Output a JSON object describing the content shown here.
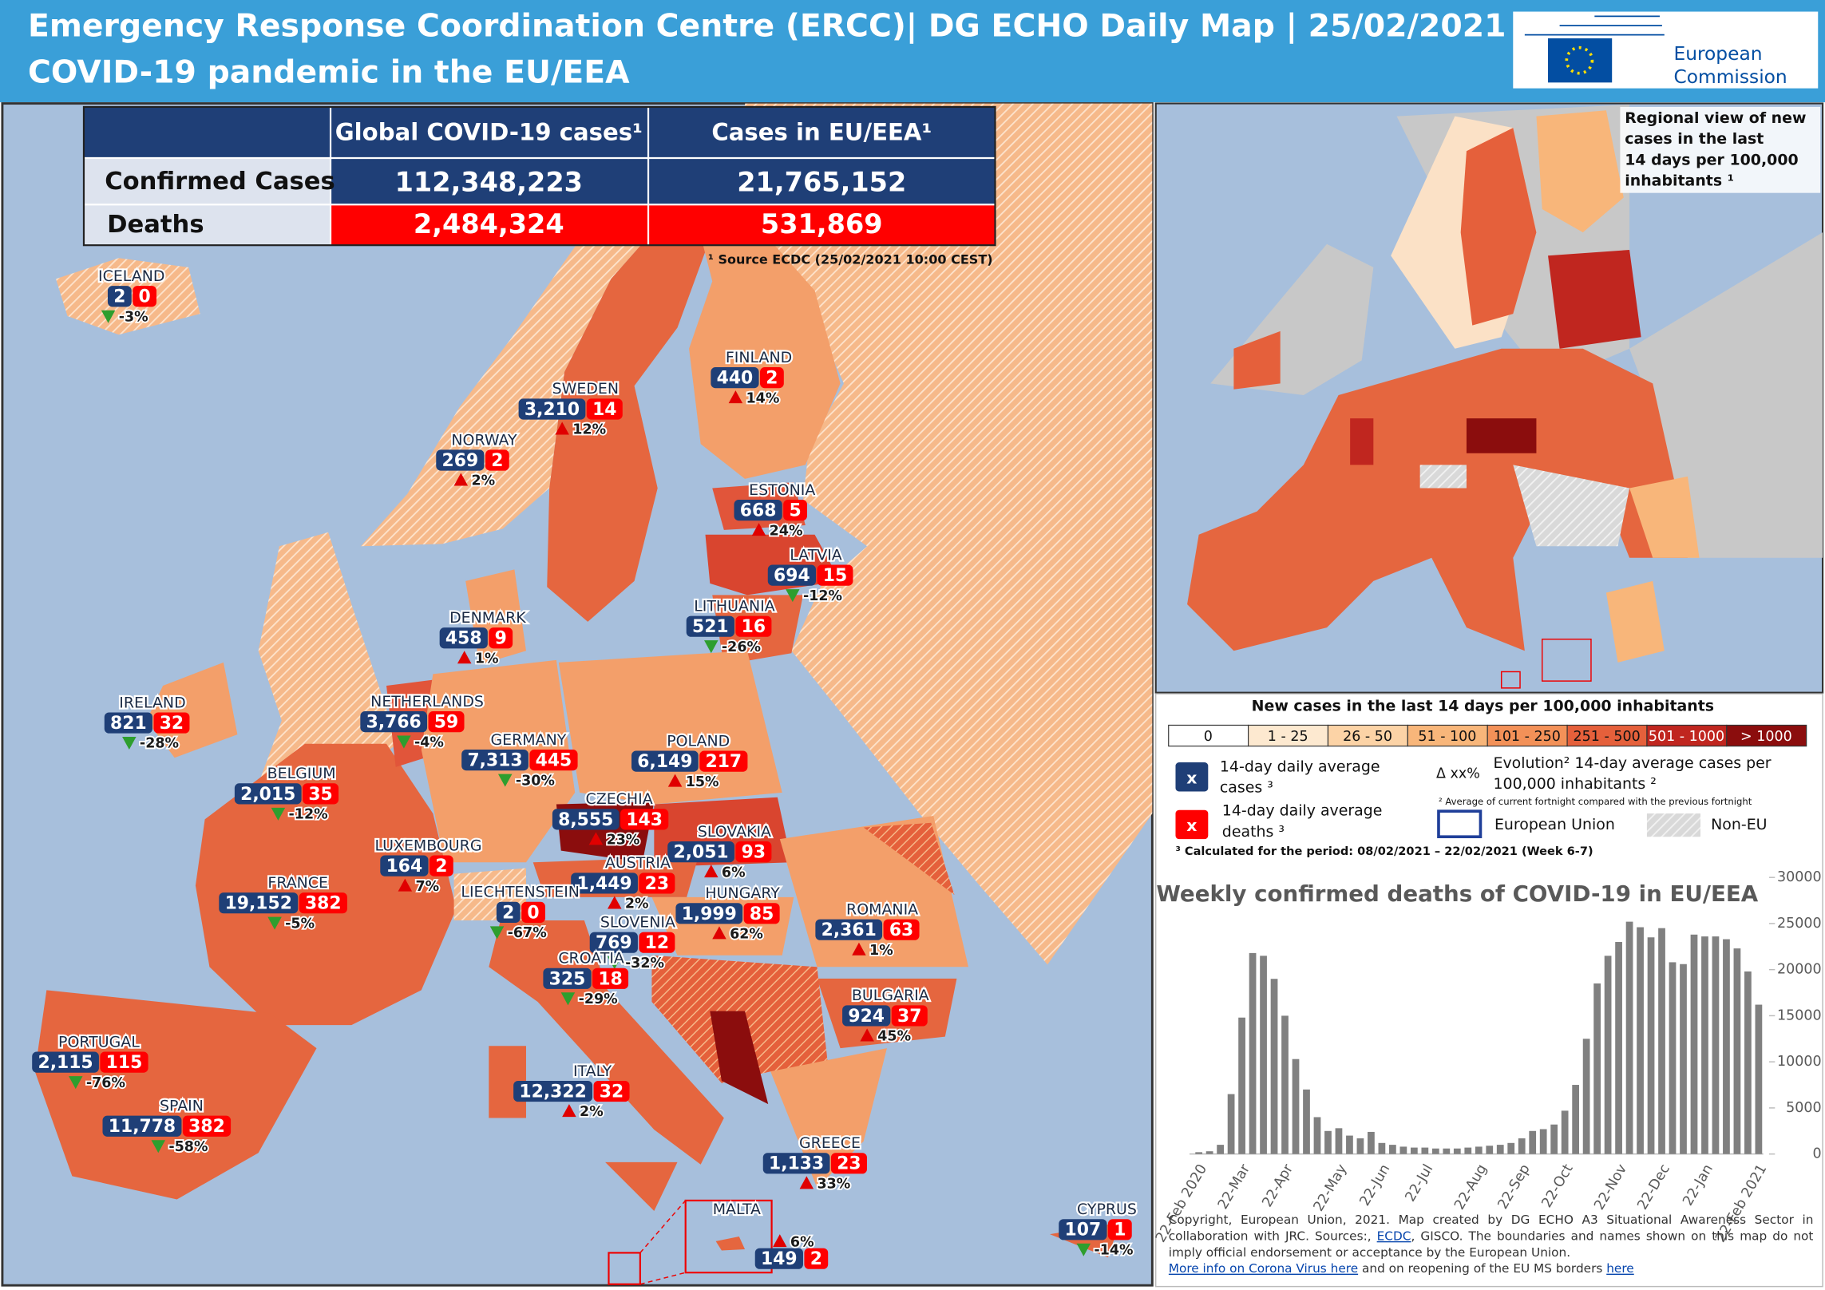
{
  "header": {
    "title": "Emergency Response Coordination Centre (ERCC)| DG ECHO Daily Map | 25/02/2021",
    "subtitle": "COVID-19 pandemic in the EU/EEA",
    "logo": [
      "European",
      "Commission"
    ]
  },
  "summary_table": {
    "columns": [
      "Global COVID-19 cases¹",
      "Cases in EU/EEA¹"
    ],
    "rows": [
      [
        "Confirmed Cases",
        "112,348,223",
        "21,765,152"
      ],
      [
        "Deaths",
        "2,484,324",
        "531,869"
      ]
    ],
    "source": "¹ Source ECDC (25/02/2021 10:00 CEST)"
  },
  "countries": [
    {
      "name": "ICELAND",
      "cases": "2",
      "deaths": "0",
      "trend": "-3%"
    },
    {
      "name": "FINLAND",
      "cases": "440",
      "deaths": "2",
      "trend": "14%"
    },
    {
      "name": "SWEDEN",
      "cases": "3,210",
      "deaths": "14",
      "trend": "12%"
    },
    {
      "name": "NORWAY",
      "cases": "269",
      "deaths": "2",
      "trend": "2%"
    },
    {
      "name": "ESTONIA",
      "cases": "668",
      "deaths": "5",
      "trend": "24%"
    },
    {
      "name": "LATVIA",
      "cases": "694",
      "deaths": "15",
      "trend": "-12%"
    },
    {
      "name": "LITHUANIA",
      "cases": "521",
      "deaths": "16",
      "trend": "-26%"
    },
    {
      "name": "DENMARK",
      "cases": "458",
      "deaths": "9",
      "trend": "1%"
    },
    {
      "name": "IRELAND",
      "cases": "821",
      "deaths": "32",
      "trend": "-28%"
    },
    {
      "name": "NETHERLANDS",
      "cases": "3,766",
      "deaths": "59",
      "trend": "-4%"
    },
    {
      "name": "GERMANY",
      "cases": "7,313",
      "deaths": "445",
      "trend": "-30%"
    },
    {
      "name": "POLAND",
      "cases": "6,149",
      "deaths": "217",
      "trend": "15%"
    },
    {
      "name": "BELGIUM",
      "cases": "2,015",
      "deaths": "35",
      "trend": "-12%"
    },
    {
      "name": "CZECHIA",
      "cases": "8,555",
      "deaths": "143",
      "trend": "23%"
    },
    {
      "name": "SLOVAKIA",
      "cases": "2,051",
      "deaths": "93",
      "trend": "6%"
    },
    {
      "name": "LUXEMBOURG",
      "cases": "164",
      "deaths": "2",
      "trend": "7%"
    },
    {
      "name": "AUSTRIA",
      "cases": "1,449",
      "deaths": "23",
      "trend": "2%"
    },
    {
      "name": "FRANCE",
      "cases": "19,152",
      "deaths": "382",
      "trend": "-5%"
    },
    {
      "name": "LIECHTENSTEIN",
      "cases": "2",
      "deaths": "0",
      "trend": "-67%"
    },
    {
      "name": "HUNGARY",
      "cases": "1,999",
      "deaths": "85",
      "trend": "62%"
    },
    {
      "name": "ROMANIA",
      "cases": "2,361",
      "deaths": "63",
      "trend": "1%"
    },
    {
      "name": "SLOVENIA",
      "cases": "769",
      "deaths": "12",
      "trend": "-32%"
    },
    {
      "name": "CROATIA",
      "cases": "325",
      "deaths": "18",
      "trend": "-29%"
    },
    {
      "name": "BULGARIA",
      "cases": "924",
      "deaths": "37",
      "trend": "45%"
    },
    {
      "name": "PORTUGAL",
      "cases": "2,115",
      "deaths": "115",
      "trend": "-76%"
    },
    {
      "name": "SPAIN",
      "cases": "11,778",
      "deaths": "382",
      "trend": "-58%"
    },
    {
      "name": "ITALY",
      "cases": "12,322",
      "deaths": "32",
      "trend": "2%"
    },
    {
      "name": "GREECE",
      "cases": "1,133",
      "deaths": "23",
      "trend": "33%"
    },
    {
      "name": "MALTA",
      "cases": "149",
      "deaths": "2",
      "trend": "6%"
    },
    {
      "name": "CYPRUS",
      "cases": "107",
      "deaths": "1",
      "trend": "-14%"
    }
  ],
  "regional_map": {
    "caption": [
      "Regional view of new",
      "cases in the last",
      "14 days per 100,000",
      "inhabitants ¹"
    ]
  },
  "legend": {
    "title": "New cases in the last 14 days per 100,000 inhabitants",
    "bins": [
      {
        "label": "0",
        "color": "#ffffff"
      },
      {
        "label": "1 - 25",
        "color": "#fde9d0"
      },
      {
        "label": "26 - 50",
        "color": "#fcd3a6"
      },
      {
        "label": "51 - 100",
        "color": "#f8b67a"
      },
      {
        "label": "101 - 250",
        "color": "#f39158"
      },
      {
        "label": "251 - 500",
        "color": "#e5603b"
      },
      {
        "label": "501 - 1000",
        "color": "#c0261f"
      },
      {
        "label": "> 1000",
        "color": "#8b0d0d"
      }
    ],
    "icon": "x",
    "cases_text": [
      "14-day daily average",
      "cases ³"
    ],
    "deaths_text": [
      "14-day daily average",
      "deaths ³"
    ],
    "evolution_symbol": "Δ xx%",
    "evolution_text": [
      "Evolution² 14-day average cases per",
      "100,000 inhabitants ²"
    ],
    "evolution_note": "² Average of current fortnight compared with the previous fortnight",
    "eu": "European Union",
    "non_eu": "Non-EU",
    "period_note": "³ Calculated for the period: 08/02/2021 – 22/02/2021 (Week 6-7)"
  },
  "chart_data": {
    "type": "bar",
    "title": "Weekly confirmed deaths of COVID-19 in EU/EEA",
    "color": "#808080",
    "categories": [
      "22-Feb 2020",
      null,
      null,
      null,
      "22-Mar",
      null,
      null,
      null,
      "22-Apr",
      null,
      null,
      null,
      null,
      "22-May",
      null,
      null,
      null,
      "22-Jun",
      null,
      null,
      null,
      "22-Jul",
      null,
      null,
      null,
      null,
      "22-Aug",
      null,
      null,
      null,
      "22-Sep",
      null,
      null,
      null,
      "22-Oct",
      null,
      null,
      null,
      null,
      "22-Nov",
      null,
      null,
      null,
      "22-Dec",
      null,
      null,
      null,
      "22-Jan",
      null,
      null,
      null,
      null,
      "22-Feb 2021"
    ],
    "values": [
      200,
      300,
      1000,
      6500,
      14800,
      21800,
      21500,
      19000,
      15000,
      10300,
      7000,
      4000,
      2500,
      2800,
      2000,
      1700,
      2400,
      1200,
      1000,
      800,
      700,
      700,
      600,
      600,
      600,
      700,
      800,
      900,
      1000,
      1200,
      1700,
      2500,
      2700,
      3200,
      4700,
      7500,
      12500,
      18500,
      21500,
      23000,
      25200,
      24600,
      23500,
      24500,
      20800,
      20600,
      23800,
      23600,
      23600,
      23300,
      22300,
      19800,
      16200
    ],
    "ylim": [
      0,
      30000
    ],
    "yticks": [
      0,
      5000,
      10000,
      15000,
      20000,
      25000,
      30000
    ],
    "grid": false
  },
  "footer": {
    "copyright_a": "Copyright, European Union, 2021. Map created by DG ECHO A3 Situational Awareness Sector in collaboration with JRC. Sources:, ",
    "ecdc_link": "ECDC",
    "copyright_b": ", GISCO. The boundaries and names shown on this map do not imply official endorsement or acceptance by the European Union.",
    "more_link": "More info on Corona Virus here",
    "borders_text": " and on reopening of the EU MS borders ",
    "here_link": "here"
  }
}
